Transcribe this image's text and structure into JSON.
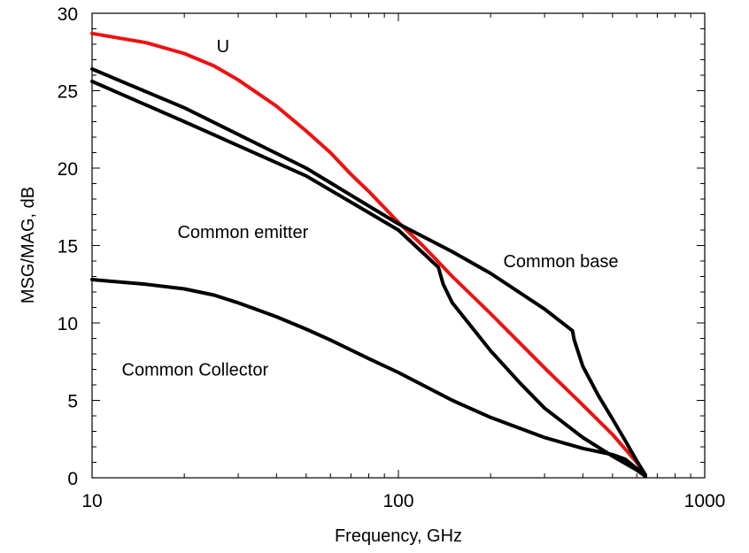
{
  "chart_data": {
    "type": "line",
    "title": "",
    "xlabel": "Frequency, GHz",
    "ylabel": "MSG/MAG, dB",
    "xscale": "log",
    "xlim": [
      10,
      1000
    ],
    "ylim": [
      0,
      30
    ],
    "x_ticks": [
      10,
      100,
      1000
    ],
    "x_tick_labels": [
      "10",
      "100",
      "1000"
    ],
    "y_ticks": [
      0,
      5,
      10,
      15,
      20,
      25,
      30
    ],
    "y_tick_labels": [
      "0",
      "5",
      "10",
      "15",
      "20",
      "25",
      "30"
    ],
    "grid": false,
    "series": [
      {
        "name": "U",
        "color": "#ee1111",
        "points": [
          [
            10,
            28.7
          ],
          [
            15,
            28.1
          ],
          [
            20,
            27.4
          ],
          [
            25,
            26.6
          ],
          [
            30,
            25.7
          ],
          [
            40,
            24.0
          ],
          [
            50,
            22.4
          ],
          [
            60,
            21.0
          ],
          [
            70,
            19.6
          ],
          [
            80,
            18.5
          ],
          [
            100,
            16.5
          ],
          [
            120,
            15.0
          ],
          [
            150,
            13.0
          ],
          [
            200,
            10.6
          ],
          [
            300,
            7.1
          ],
          [
            400,
            4.7
          ],
          [
            500,
            2.8
          ],
          [
            600,
            1.0
          ],
          [
            640,
            0.2
          ]
        ]
      },
      {
        "name": "Common base",
        "color": "#000000",
        "points": [
          [
            10,
            26.4
          ],
          [
            20,
            23.9
          ],
          [
            50,
            20.0
          ],
          [
            100,
            16.4
          ],
          [
            150,
            14.6
          ],
          [
            200,
            13.2
          ],
          [
            300,
            10.9
          ],
          [
            370,
            9.5
          ],
          [
            375,
            8.9
          ],
          [
            400,
            7.2
          ],
          [
            450,
            5.3
          ],
          [
            500,
            3.8
          ],
          [
            550,
            2.4
          ],
          [
            600,
            1.1
          ],
          [
            640,
            0.2
          ]
        ]
      },
      {
        "name": "Common emitter",
        "color": "#000000",
        "points": [
          [
            10,
            25.6
          ],
          [
            20,
            23.0
          ],
          [
            50,
            19.5
          ],
          [
            100,
            16.0
          ],
          [
            135,
            13.6
          ],
          [
            140,
            12.5
          ],
          [
            150,
            11.3
          ],
          [
            200,
            8.2
          ],
          [
            250,
            6.1
          ],
          [
            300,
            4.5
          ],
          [
            400,
            2.6
          ],
          [
            500,
            1.4
          ],
          [
            600,
            0.5
          ],
          [
            640,
            0.1
          ]
        ]
      },
      {
        "name": "Common Collector",
        "color": "#000000",
        "points": [
          [
            10,
            12.8
          ],
          [
            15,
            12.5
          ],
          [
            20,
            12.2
          ],
          [
            25,
            11.8
          ],
          [
            30,
            11.3
          ],
          [
            40,
            10.4
          ],
          [
            50,
            9.6
          ],
          [
            60,
            8.9
          ],
          [
            80,
            7.7
          ],
          [
            100,
            6.8
          ],
          [
            150,
            5.0
          ],
          [
            200,
            3.9
          ],
          [
            300,
            2.6
          ],
          [
            400,
            1.9
          ],
          [
            500,
            1.5
          ],
          [
            550,
            1.2
          ],
          [
            600,
            0.6
          ],
          [
            640,
            0.1
          ]
        ]
      }
    ],
    "annotations": [
      {
        "text": "U",
        "x": 25.5,
        "y": 27.5,
        "color": "#ee1111"
      },
      {
        "text": "Common emitter",
        "x": 19,
        "y": 15.5,
        "color": "#000000"
      },
      {
        "text": "Common base",
        "x": 220,
        "y": 13.6,
        "color": "#000000"
      },
      {
        "text": "Common Collector",
        "x": 12.5,
        "y": 6.6,
        "color": "#000000"
      }
    ]
  }
}
